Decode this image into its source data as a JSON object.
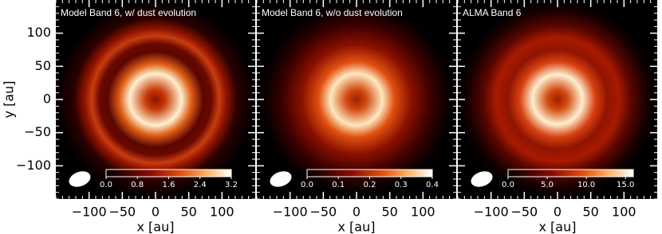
{
  "chart_data": [
    {
      "type": "image",
      "title": "Model Band 6, w/ dust evolution",
      "xlabel": "x [au]",
      "ylabel": "y [au]",
      "xlim": [
        -150,
        150
      ],
      "ylim": [
        -150,
        150
      ],
      "xticks": [
        {
          "value": -100,
          "label": "−100"
        },
        {
          "value": -50,
          "label": "−50"
        },
        0,
        50,
        100
      ],
      "yticks": [
        {
          "value": -100,
          "label": "−100"
        },
        {
          "value": -50,
          "label": "−50"
        },
        0,
        50,
        100
      ],
      "show_ytick_labels": true,
      "colorbar": {
        "lim": [
          0,
          3.2
        ],
        "ticks": [
          {
            "value": 0,
            "label": "0.0"
          },
          {
            "value": 0.8,
            "label": "0.8"
          },
          {
            "value": 1.6,
            "label": "1.6"
          },
          {
            "value": 2.4,
            "label": "2.4"
          },
          {
            "value": 3.2,
            "label": "3.2"
          }
        ]
      }
    },
    {
      "type": "image",
      "title": "Model Band 6, w/o dust evolution",
      "xlabel": "x [au]",
      "xlim": [
        -150,
        150
      ],
      "ylim": [
        -150,
        150
      ],
      "xticks": [
        {
          "value": -100,
          "label": "−100"
        },
        {
          "value": -50,
          "label": "−50"
        },
        0,
        50,
        100
      ],
      "yticks": [
        -100,
        -50,
        0,
        50,
        100
      ],
      "show_ytick_labels": false,
      "colorbar": {
        "lim": [
          0,
          0.4
        ],
        "ticks": [
          {
            "value": 0,
            "label": "0.0"
          },
          {
            "value": 0.1,
            "label": "0.1"
          },
          {
            "value": 0.2,
            "label": "0.2"
          },
          {
            "value": 0.3,
            "label": "0.3"
          },
          {
            "value": 0.4,
            "label": "0.4"
          }
        ]
      }
    },
    {
      "type": "image",
      "title": "ALMA Band 6",
      "xlabel": "x [au]",
      "xlim": [
        -150,
        150
      ],
      "ylim": [
        -150,
        150
      ],
      "xticks": [
        {
          "value": -100,
          "label": "−100"
        },
        {
          "value": -50,
          "label": "−50"
        },
        0,
        50,
        100
      ],
      "yticks": [
        -100,
        -50,
        0,
        50,
        100
      ],
      "show_ytick_labels": false,
      "colorbar": {
        "lim": [
          0,
          16
        ],
        "ticks": [
          {
            "value": 0,
            "label": "0.0"
          },
          {
            "value": 5,
            "label": "5.0"
          },
          {
            "value": 10,
            "label": "10.0"
          },
          {
            "value": 15,
            "label": "15.0"
          }
        ]
      }
    }
  ]
}
